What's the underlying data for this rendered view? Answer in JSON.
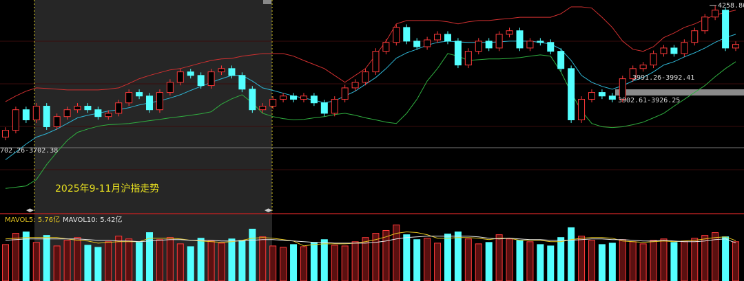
{
  "chart_data": {
    "type": "candlestick",
    "title": "2025年9-11月沪指走势",
    "up_color": "#ff3a3a",
    "down_color": "#54ffff",
    "ylim": [
      3455,
      4280
    ],
    "open": [
      3740,
      3767,
      3848,
      3808,
      3862,
      3781,
      3821,
      3848,
      3862,
      3848,
      3821,
      3834,
      3875,
      3916,
      3902,
      3848,
      3916,
      3956,
      3997,
      3983,
      3943,
      3997,
      4010,
      3983,
      3929,
      3848,
      3862,
      3889,
      3902,
      3889,
      3902,
      3875,
      3834,
      3889,
      3934,
      3956,
      3997,
      4078,
      4113,
      4172,
      4118,
      4096,
      4123,
      4145,
      4118,
      4024,
      4078,
      4118,
      4091,
      4145,
      4159,
      4091,
      4118,
      4113,
      4078,
      4010,
      3808,
      3889,
      3916,
      3902,
      3889,
      3970,
      4010,
      4024,
      4069,
      4091,
      4069,
      4113,
      4159,
      4213,
      4240,
      4091
    ],
    "high": [
      3779,
      3860,
      3860,
      3874,
      3874,
      3833,
      3860,
      3874,
      3874,
      3860,
      3846,
      3887,
      3928,
      3928,
      3914,
      3928,
      3968,
      4009,
      4009,
      3995,
      4009,
      4022,
      4022,
      3995,
      3941,
      3874,
      3901,
      3914,
      3914,
      3914,
      3914,
      3887,
      3901,
      3946,
      3968,
      4009,
      4090,
      4125,
      4184,
      4184,
      4130,
      4135,
      4157,
      4157,
      4130,
      4090,
      4130,
      4130,
      4157,
      4171,
      4171,
      4130,
      4130,
      4125,
      4090,
      4022,
      3901,
      3928,
      3928,
      3914,
      3982,
      4022,
      4036,
      4081,
      4103,
      4103,
      4125,
      4171,
      4225,
      4258.86,
      4252,
      4117
    ],
    "low": [
      3728,
      3755,
      3796,
      3796,
      3769,
      3769,
      3809,
      3836,
      3836,
      3809,
      3809,
      3822,
      3863,
      3890,
      3836,
      3836,
      3904,
      3944,
      3971,
      3931,
      3931,
      3985,
      3971,
      3917,
      3836,
      3836,
      3850,
      3877,
      3877,
      3877,
      3863,
      3822,
      3822,
      3877,
      3922,
      3944,
      3985,
      4066,
      4101,
      4106,
      4084,
      4084,
      4111,
      4106,
      4012,
      4012,
      4066,
      4079,
      4079,
      4133,
      4079,
      4079,
      4101,
      4066,
      3998,
      3796,
      3796,
      3877,
      3890,
      3877,
      3877,
      3958,
      3998,
      4012,
      4057,
      4057,
      4057,
      4101,
      4147,
      4201,
      4079,
      4079
    ],
    "close": [
      3767,
      3848,
      3808,
      3862,
      3781,
      3821,
      3848,
      3862,
      3848,
      3821,
      3834,
      3875,
      3916,
      3902,
      3848,
      3916,
      3956,
      3997,
      3983,
      3943,
      3997,
      4010,
      3983,
      3929,
      3848,
      3862,
      3889,
      3902,
      3889,
      3902,
      3875,
      3834,
      3889,
      3934,
      3956,
      3997,
      4078,
      4113,
      4172,
      4118,
      4096,
      4123,
      4145,
      4118,
      4024,
      4078,
      4118,
      4091,
      4145,
      4159,
      4091,
      4118,
      4113,
      4078,
      4010,
      3808,
      3889,
      3916,
      3902,
      3889,
      3970,
      4010,
      4024,
      4069,
      4091,
      4069,
      4113,
      4159,
      4213,
      4240,
      4091,
      4105
    ],
    "bands": [
      {
        "color": "#d23030",
        "values": [
          3880,
          3902,
          3921,
          3934,
          3932,
          3929,
          3926,
          3926,
          3926,
          3926,
          3929,
          3934,
          3951,
          3970,
          3983,
          3994,
          4005,
          4010,
          4021,
          4032,
          4042,
          4048,
          4050,
          4059,
          4064,
          4069,
          4069,
          4069,
          4059,
          4042,
          4026,
          4010,
          3983,
          3956,
          3983,
          4010,
          4064,
          4118,
          4186,
          4199,
          4199,
          4199,
          4199,
          4194,
          4186,
          4194,
          4199,
          4199,
          4204,
          4207,
          4212,
          4212,
          4212,
          4212,
          4226,
          4253,
          4253,
          4248,
          4212,
          4172,
          4118,
          4086,
          4078,
          4096,
          4132,
          4150,
          4172,
          4186,
          4204,
          4221,
          4231,
          4240
        ]
      },
      {
        "color": "#2fb8d8",
        "values": [
          3651,
          3681,
          3713,
          3740,
          3754,
          3772,
          3794,
          3816,
          3826,
          3834,
          3843,
          3848,
          3856,
          3867,
          3875,
          3883,
          3894,
          3907,
          3924,
          3940,
          3956,
          3970,
          3983,
          3983,
          3961,
          3934,
          3924,
          3913,
          3902,
          3894,
          3886,
          3875,
          3883,
          3902,
          3921,
          3948,
          3975,
          4010,
          4051,
          4072,
          4086,
          4102,
          4113,
          4118,
          4115,
          4113,
          4113,
          4113,
          4115,
          4118,
          4118,
          4118,
          4113,
          4107,
          4086,
          4042,
          3983,
          3956,
          3940,
          3929,
          3943,
          3961,
          3975,
          3997,
          4024,
          4037,
          4056,
          4072,
          4091,
          4113,
          4132,
          4145
        ]
      },
      {
        "color": "#30b040",
        "values": [
          3538,
          3543,
          3548,
          3573,
          3632,
          3681,
          3727,
          3759,
          3772,
          3783,
          3789,
          3791,
          3794,
          3799,
          3805,
          3810,
          3816,
          3821,
          3826,
          3832,
          3840,
          3870,
          3891,
          3907,
          3875,
          3834,
          3821,
          3813,
          3808,
          3810,
          3816,
          3821,
          3829,
          3834,
          3826,
          3816,
          3808,
          3799,
          3794,
          3834,
          3889,
          3961,
          4010,
          4069,
          4059,
          4042,
          4045,
          4048,
          4048,
          4050,
          4053,
          4059,
          4064,
          4059,
          3997,
          3916,
          3843,
          3794,
          3781,
          3778,
          3781,
          3789,
          3799,
          3816,
          3834,
          3862,
          3889,
          3916,
          3943,
          3978,
          4010,
          4037
        ]
      }
    ],
    "annotations": [
      "4258.86",
      "3991.26-3992.41",
      "3902.61-3926.25",
      "702.26-3702.38"
    ],
    "volume": {
      "ylim": [
        0,
        9.5
      ],
      "values": [
        5.2,
        6.8,
        7.0,
        5.5,
        6.5,
        5.0,
        5.8,
        6.2,
        5.1,
        4.8,
        5.6,
        6.4,
        6.0,
        5.5,
        6.9,
        5.9,
        6.2,
        5.3,
        4.9,
        6.1,
        5.7,
        5.4,
        6.0,
        5.8,
        7.4,
        6.3,
        5.0,
        4.8,
        5.2,
        4.9,
        5.5,
        5.9,
        5.1,
        5.0,
        5.6,
        6.2,
        6.8,
        7.2,
        8.0,
        6.6,
        5.9,
        6.1,
        5.4,
        6.7,
        7.0,
        6.0,
        5.3,
        5.5,
        6.6,
        6.0,
        5.8,
        5.6,
        5.2,
        5.0,
        6.2,
        7.6,
        6.4,
        5.8,
        5.2,
        5.4,
        5.9,
        5.6,
        5.3,
        5.8,
        6.0,
        5.5,
        5.7,
        6.1,
        6.5,
        6.9,
        6.3,
        5.6
      ],
      "series": [
        {
          "name": "MAVOL5: 5.76亿",
          "color": "#e8c820",
          "values": [
            6.0,
            6.1,
            6.2,
            6.2,
            6.2,
            6.2,
            6.0,
            5.8,
            5.7,
            5.4,
            5.5,
            5.6,
            5.6,
            5.6,
            6.1,
            6.1,
            6.1,
            6.0,
            5.8,
            5.7,
            5.6,
            5.5,
            5.6,
            5.8,
            6.1,
            6.2,
            6.1,
            5.9,
            5.7,
            5.0,
            5.2,
            5.3,
            5.3,
            5.3,
            5.4,
            5.6,
            5.9,
            6.3,
            6.8,
            7.0,
            6.9,
            6.6,
            6.1,
            6.1,
            6.2,
            6.2,
            6.1,
            5.9,
            6.1,
            6.1,
            5.8,
            5.8,
            5.8,
            5.6,
            5.6,
            5.9,
            6.1,
            6.2,
            6.2,
            6.1,
            5.7,
            5.6,
            5.5,
            5.6,
            5.7,
            5.6,
            5.7,
            5.8,
            6.0,
            6.2,
            6.3,
            5.76
          ]
        },
        {
          "name": "MAVOL10: 5.42亿",
          "color": "#e8e8e8",
          "values": [
            5.8,
            5.9,
            6.0,
            6.0,
            6.0,
            6.0,
            6.0,
            6.0,
            5.9,
            5.8,
            5.8,
            5.7,
            5.7,
            5.6,
            5.7,
            5.8,
            5.9,
            5.9,
            5.8,
            5.8,
            5.8,
            5.7,
            5.7,
            5.7,
            5.8,
            5.9,
            5.9,
            5.8,
            5.7,
            5.6,
            5.5,
            5.5,
            5.4,
            5.4,
            5.4,
            5.4,
            5.5,
            5.7,
            6.0,
            6.2,
            6.3,
            6.4,
            6.4,
            6.4,
            6.4,
            6.4,
            6.3,
            6.1,
            6.0,
            6.1,
            6.0,
            5.9,
            5.9,
            5.8,
            5.8,
            5.8,
            5.9,
            6.0,
            6.0,
            5.9,
            5.9,
            5.8,
            5.7,
            5.7,
            5.8,
            5.7,
            5.6,
            5.6,
            5.7,
            5.9,
            6.0,
            5.42
          ]
        }
      ]
    }
  }
}
